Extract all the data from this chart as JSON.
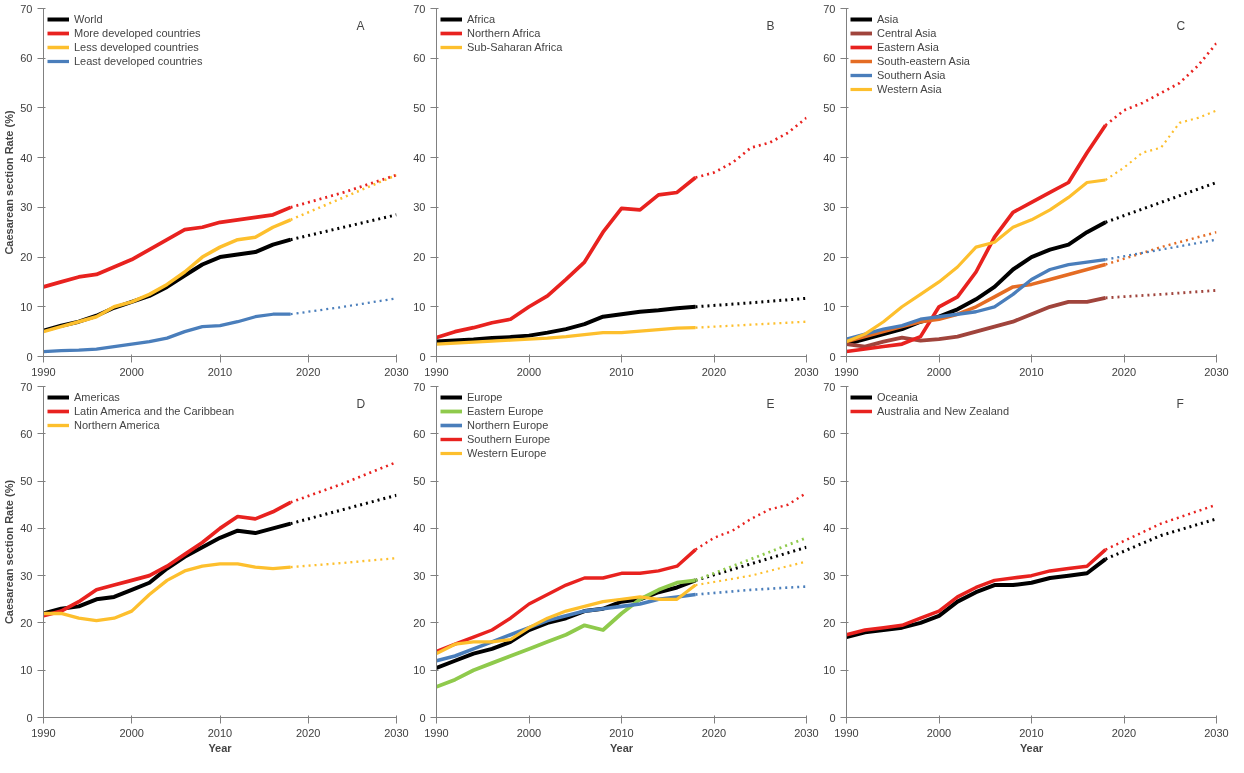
{
  "chart_data": [
    {
      "type": "line",
      "ylabel": "Caesarean section Rate (%)",
      "annotations": [
        "A"
      ],
      "xlim": [
        1990,
        2030
      ],
      "xticks": [
        1990,
        2000,
        2010,
        2020,
        2030
      ],
      "ylim": [
        0,
        70
      ],
      "yticks": [
        0,
        10,
        20,
        30,
        40,
        50,
        60,
        70
      ],
      "grid": false,
      "legend": "top left",
      "marker": "none",
      "line_style": "solid",
      "series": [
        {
          "name": "World",
          "color": "#000000",
          "x": [
            1990,
            1992,
            1994,
            1996,
            1998,
            2000,
            2002,
            2004,
            2006,
            2008,
            2010,
            2012,
            2014,
            2016,
            2018
          ],
          "values": [
            5.2,
            6.2,
            7,
            8.2,
            9.8,
            11,
            12.2,
            14,
            16.3,
            18.5,
            20,
            20.5,
            21,
            22.5,
            23.5
          ]
        },
        {
          "name": "More developed countries",
          "color": "#e8221f",
          "x": [
            1990,
            1992,
            1994,
            1996,
            1998,
            2000,
            2002,
            2004,
            2006,
            2008,
            2010,
            2012,
            2014,
            2016,
            2018
          ],
          "values": [
            14,
            15,
            16,
            16.5,
            18,
            19.5,
            21.5,
            23.5,
            25.5,
            26,
            27,
            27.5,
            28,
            28.5,
            30
          ]
        },
        {
          "name": "Less developed countries",
          "color": "#fdbf2d",
          "x": [
            1990,
            1992,
            1994,
            1996,
            1998,
            2000,
            2002,
            2004,
            2006,
            2008,
            2010,
            2012,
            2014,
            2016,
            2018
          ],
          "values": [
            5,
            6,
            7,
            8,
            10,
            11,
            12.5,
            14.5,
            17,
            20,
            22,
            23.5,
            24,
            26,
            27.5
          ]
        },
        {
          "name": "Least developed countries",
          "color": "#4a7ebb",
          "x": [
            1990,
            1992,
            1994,
            1996,
            1998,
            2000,
            2002,
            2004,
            2006,
            2008,
            2010,
            2012,
            2014,
            2016,
            2018
          ],
          "values": [
            1,
            1.2,
            1.3,
            1.5,
            2,
            2.5,
            3,
            3.7,
            5,
            6,
            6.2,
            7,
            8,
            8.5,
            8.5
          ]
        },
        {
          "color": "#000000",
          "line_style": "dotted",
          "x": [
            2018,
            2024,
            2030
          ],
          "values": [
            23.5,
            26,
            28.5
          ]
        },
        {
          "color": "#e8221f",
          "line_style": "dotted",
          "x": [
            2018,
            2024,
            2030
          ],
          "values": [
            30,
            33,
            36.5
          ]
        },
        {
          "color": "#fdbf2d",
          "line_style": "dotted",
          "x": [
            2018,
            2024,
            2030
          ],
          "values": [
            27.5,
            32,
            36.5
          ]
        },
        {
          "color": "#4a7ebb",
          "line_style": "dotted",
          "x": [
            2018,
            2024,
            2030
          ],
          "values": [
            8.5,
            10,
            11.7
          ]
        }
      ]
    },
    {
      "type": "line",
      "annotations": [
        "B"
      ],
      "xlim": [
        1990,
        2030
      ],
      "xticks": [
        1990,
        2000,
        2010,
        2020,
        2030
      ],
      "ylim": [
        0,
        70
      ],
      "yticks": [
        0,
        10,
        20,
        30,
        40,
        50,
        60,
        70
      ],
      "grid": false,
      "legend": "top left",
      "marker": "none",
      "line_style": "solid",
      "series": [
        {
          "name": "Africa",
          "color": "#000000",
          "x": [
            1990,
            1992,
            1994,
            1996,
            1998,
            2000,
            2002,
            2004,
            2006,
            2008,
            2010,
            2012,
            2014,
            2016,
            2018
          ],
          "values": [
            3,
            3.2,
            3.4,
            3.7,
            3.9,
            4.2,
            4.8,
            5.5,
            6.5,
            8,
            8.5,
            9,
            9.3,
            9.7,
            10
          ]
        },
        {
          "name": "Northern Africa",
          "color": "#e8221f",
          "x": [
            1990,
            1992,
            1994,
            1996,
            1998,
            2000,
            2002,
            2004,
            2006,
            2008,
            2010,
            2012,
            2014,
            2016,
            2018
          ],
          "values": [
            3.8,
            5,
            5.8,
            6.8,
            7.5,
            10,
            12.2,
            15.5,
            19,
            25,
            29.8,
            29.5,
            32.5,
            33,
            36
          ]
        },
        {
          "name": "Sub-Saharan Africa",
          "color": "#fdbf2d",
          "x": [
            1990,
            1992,
            1994,
            1996,
            1998,
            2000,
            2002,
            2004,
            2006,
            2008,
            2010,
            2012,
            2014,
            2016,
            2018
          ],
          "values": [
            2.5,
            2.7,
            2.9,
            3.1,
            3.3,
            3.5,
            3.7,
            4,
            4.4,
            4.8,
            4.8,
            5.1,
            5.4,
            5.7,
            5.8
          ]
        },
        {
          "color": "#000000",
          "line_style": "dotted",
          "x": [
            2018,
            2024,
            2030
          ],
          "values": [
            10,
            10.8,
            11.7
          ]
        },
        {
          "color": "#e8221f",
          "line_style": "dotted",
          "x": [
            2018,
            2020,
            2022,
            2024,
            2026,
            2028,
            2030
          ],
          "values": [
            36,
            37,
            39,
            42,
            43,
            45,
            48
          ]
        },
        {
          "color": "#fdbf2d",
          "line_style": "dotted",
          "x": [
            2018,
            2024,
            2030
          ],
          "values": [
            5.8,
            6.4,
            7
          ]
        }
      ]
    },
    {
      "type": "line",
      "annotations": [
        "C"
      ],
      "xlim": [
        1990,
        2030
      ],
      "xticks": [
        1990,
        2000,
        2010,
        2020,
        2030
      ],
      "ylim": [
        0,
        70
      ],
      "yticks": [
        0,
        10,
        20,
        30,
        40,
        50,
        60,
        70
      ],
      "grid": false,
      "legend": "top left",
      "marker": "none",
      "line_style": "solid",
      "series": [
        {
          "name": "Asia",
          "color": "#000000",
          "x": [
            1990,
            1992,
            1994,
            1996,
            1998,
            2000,
            2002,
            2004,
            2006,
            2008,
            2010,
            2012,
            2014,
            2016,
            2018
          ],
          "values": [
            2.5,
            3.5,
            4.5,
            5.5,
            7,
            8,
            9.5,
            11.5,
            14,
            17.5,
            20,
            21.5,
            22.5,
            25,
            27
          ]
        },
        {
          "name": "Central Asia",
          "color": "#a0443c",
          "x": [
            1990,
            1992,
            1994,
            1996,
            1998,
            2000,
            2002,
            2004,
            2006,
            2008,
            2010,
            2012,
            2014,
            2016,
            2018
          ],
          "values": [
            2.5,
            2,
            3,
            3.8,
            3.2,
            3.5,
            4,
            5,
            6,
            7,
            8.5,
            10,
            11,
            11,
            11.8
          ]
        },
        {
          "name": "Eastern Asia",
          "color": "#e8221f",
          "x": [
            1990,
            1992,
            1994,
            1996,
            1998,
            2000,
            2002,
            2004,
            2006,
            2008,
            2010,
            2012,
            2014,
            2016,
            2018
          ],
          "values": [
            1,
            1.5,
            2,
            2.5,
            4,
            10,
            12,
            17,
            24,
            29,
            31,
            33,
            35,
            41,
            46.5
          ]
        },
        {
          "name": "South-eastern Asia",
          "color": "#e46c24",
          "x": [
            1990,
            1992,
            1994,
            1996,
            1998,
            2000,
            2002,
            2004,
            2006,
            2008,
            2010,
            2012,
            2014,
            2016,
            2018
          ],
          "values": [
            3,
            4,
            5,
            6,
            7,
            7.5,
            8.5,
            10,
            12,
            14,
            14.5,
            15.5,
            16.5,
            17.5,
            18.5
          ]
        },
        {
          "name": "Southern Asia",
          "color": "#4a7ebb",
          "x": [
            1990,
            1992,
            1994,
            1996,
            1998,
            2000,
            2002,
            2004,
            2006,
            2008,
            2010,
            2012,
            2014,
            2016,
            2018
          ],
          "values": [
            3.5,
            4.5,
            5.5,
            6.2,
            7.5,
            8,
            8.5,
            9,
            10,
            12.5,
            15.5,
            17.5,
            18.5,
            19,
            19.5
          ]
        },
        {
          "name": "Western Asia",
          "color": "#fdbf2d",
          "x": [
            1990,
            1992,
            1994,
            1996,
            1998,
            2000,
            2002,
            2004,
            2006,
            2008,
            2010,
            2012,
            2014,
            2016,
            2018
          ],
          "values": [
            3,
            4.5,
            7,
            10,
            12.5,
            15,
            18,
            22,
            23,
            26,
            27.5,
            29.5,
            32,
            35,
            35.5
          ]
        },
        {
          "color": "#000000",
          "line_style": "dotted",
          "x": [
            2018,
            2024,
            2030
          ],
          "values": [
            27,
            31,
            35
          ]
        },
        {
          "color": "#a0443c",
          "line_style": "dotted",
          "x": [
            2018,
            2024,
            2030
          ],
          "values": [
            11.8,
            12.5,
            13.3
          ]
        },
        {
          "color": "#e8221f",
          "line_style": "dotted",
          "x": [
            2018,
            2020,
            2022,
            2024,
            2026,
            2028,
            2030
          ],
          "values": [
            46.5,
            49.5,
            51,
            53,
            55,
            58.5,
            63
          ]
        },
        {
          "color": "#e46c24",
          "line_style": "dotted",
          "x": [
            2018,
            2024,
            2030
          ],
          "values": [
            18.5,
            22,
            25
          ]
        },
        {
          "color": "#4a7ebb",
          "line_style": "dotted",
          "x": [
            2018,
            2024,
            2030
          ],
          "values": [
            19.5,
            21.5,
            23.5
          ]
        },
        {
          "color": "#fdbf2d",
          "line_style": "dotted",
          "x": [
            2018,
            2020,
            2022,
            2024,
            2026,
            2028,
            2030
          ],
          "values": [
            35.5,
            38,
            41,
            42,
            47,
            48,
            49.5
          ]
        }
      ]
    },
    {
      "type": "line",
      "xlabel": "Year",
      "ylabel": "Caesarean section Rate (%)",
      "annotations": [
        "D"
      ],
      "xlim": [
        1990,
        2030
      ],
      "xticks": [
        1990,
        2000,
        2010,
        2020,
        2030
      ],
      "ylim": [
        0,
        70
      ],
      "yticks": [
        0,
        10,
        20,
        30,
        40,
        50,
        60,
        70
      ],
      "grid": false,
      "legend": "top left",
      "marker": "none",
      "line_style": "solid",
      "series": [
        {
          "name": "Americas",
          "color": "#000000",
          "x": [
            1990,
            1992,
            1994,
            1996,
            1998,
            2000,
            2002,
            2004,
            2006,
            2008,
            2010,
            2012,
            2014,
            2016,
            2018
          ],
          "values": [
            22,
            23,
            23.5,
            25,
            25.5,
            27,
            28.5,
            31.5,
            34,
            36,
            38,
            39.5,
            39,
            40,
            41
          ]
        },
        {
          "name": "Latin America and the Caribbean",
          "color": "#e8221f",
          "x": [
            1990,
            1992,
            1994,
            1996,
            1998,
            2000,
            2002,
            2004,
            2006,
            2008,
            2010,
            2012,
            2014,
            2016,
            2018
          ],
          "values": [
            21.5,
            22.5,
            24.5,
            27,
            28,
            29,
            30,
            32,
            34.5,
            37,
            40,
            42.5,
            42,
            43.5,
            45.5
          ]
        },
        {
          "name": "Northern America",
          "color": "#fdbf2d",
          "x": [
            1990,
            1992,
            1994,
            1996,
            1998,
            2000,
            2002,
            2004,
            2006,
            2008,
            2010,
            2012,
            2014,
            2016,
            2018
          ],
          "values": [
            22,
            22,
            21,
            20.5,
            21,
            22.5,
            26,
            29,
            31,
            32,
            32.5,
            32.5,
            31.8,
            31.5,
            31.8
          ]
        },
        {
          "color": "#000000",
          "line_style": "dotted",
          "x": [
            2018,
            2024,
            2030
          ],
          "values": [
            41,
            44,
            47
          ]
        },
        {
          "color": "#e8221f",
          "line_style": "dotted",
          "x": [
            2018,
            2024,
            2030
          ],
          "values": [
            45.5,
            49.5,
            54
          ]
        },
        {
          "color": "#fdbf2d",
          "line_style": "dotted",
          "x": [
            2018,
            2024,
            2030
          ],
          "values": [
            31.8,
            32.7,
            33.7
          ]
        }
      ]
    },
    {
      "type": "line",
      "xlabel": "Year",
      "annotations": [
        "E"
      ],
      "xlim": [
        1990,
        2030
      ],
      "xticks": [
        1990,
        2000,
        2010,
        2020,
        2030
      ],
      "ylim": [
        0,
        70
      ],
      "yticks": [
        0,
        10,
        20,
        30,
        40,
        50,
        60,
        70
      ],
      "grid": false,
      "legend": "top left",
      "marker": "none",
      "line_style": "solid",
      "series": [
        {
          "name": "Europe",
          "color": "#000000",
          "x": [
            1990,
            1992,
            1994,
            1996,
            1998,
            2000,
            2002,
            2004,
            2006,
            2008,
            2010,
            2012,
            2014,
            2016,
            2018
          ],
          "values": [
            10.5,
            12,
            13.5,
            14.5,
            16,
            18.5,
            20,
            21,
            22.5,
            23,
            24.5,
            25,
            26.5,
            27.5,
            29
          ]
        },
        {
          "name": "Eastern Europe",
          "color": "#8fca4c",
          "x": [
            1990,
            1992,
            1994,
            1996,
            1998,
            2000,
            2002,
            2004,
            2006,
            2008,
            2010,
            2012,
            2014,
            2016,
            2018
          ],
          "values": [
            6.5,
            8,
            10,
            11.5,
            13,
            14.5,
            16,
            17.5,
            19.5,
            18.5,
            22,
            25,
            27,
            28.5,
            29
          ]
        },
        {
          "name": "Northern Europe",
          "color": "#4a7ebb",
          "x": [
            1990,
            1992,
            1994,
            1996,
            1998,
            2000,
            2002,
            2004,
            2006,
            2008,
            2010,
            2012,
            2014,
            2016,
            2018
          ],
          "values": [
            12,
            13,
            14.5,
            16,
            17.5,
            19,
            20.5,
            21.5,
            22.5,
            23,
            23.5,
            24,
            25,
            25.5,
            26
          ]
        },
        {
          "name": "Southern Europe",
          "color": "#e8221f",
          "x": [
            1990,
            1992,
            1994,
            1996,
            1998,
            2000,
            2002,
            2004,
            2006,
            2008,
            2010,
            2012,
            2014,
            2016,
            2018
          ],
          "values": [
            14,
            15.5,
            17,
            18.5,
            21,
            24,
            26,
            28,
            29.5,
            29.5,
            30.5,
            30.5,
            31,
            32,
            35.5
          ]
        },
        {
          "name": "Western Europe",
          "color": "#fdbf2d",
          "x": [
            1990,
            1992,
            1994,
            1996,
            1998,
            2000,
            2002,
            2004,
            2006,
            2008,
            2010,
            2012,
            2014,
            2016,
            2018
          ],
          "values": [
            13.5,
            15.5,
            16,
            16,
            16.5,
            19,
            21,
            22.5,
            23.5,
            24.5,
            25,
            25.5,
            25,
            25,
            28
          ]
        },
        {
          "color": "#000000",
          "line_style": "dotted",
          "x": [
            2018,
            2024,
            2030
          ],
          "values": [
            29,
            32.5,
            36
          ]
        },
        {
          "color": "#8fca4c",
          "line_style": "dotted",
          "x": [
            2018,
            2024,
            2030
          ],
          "values": [
            29,
            33.5,
            38
          ]
        },
        {
          "color": "#4a7ebb",
          "line_style": "dotted",
          "x": [
            2018,
            2024,
            2030
          ],
          "values": [
            26,
            27,
            27.7
          ]
        },
        {
          "color": "#e8221f",
          "line_style": "dotted",
          "x": [
            2018,
            2020,
            2022,
            2024,
            2026,
            2028,
            2030
          ],
          "values": [
            35.5,
            38,
            39.5,
            42,
            44,
            45,
            47.5
          ]
        },
        {
          "color": "#fdbf2d",
          "line_style": "dotted",
          "x": [
            2018,
            2024,
            2030
          ],
          "values": [
            28,
            30,
            33
          ]
        }
      ]
    },
    {
      "type": "line",
      "xlabel": "Year",
      "annotations": [
        "F"
      ],
      "xlim": [
        1990,
        2030
      ],
      "xticks": [
        1990,
        2000,
        2010,
        2020,
        2030
      ],
      "ylim": [
        0,
        70
      ],
      "yticks": [
        0,
        10,
        20,
        30,
        40,
        50,
        60,
        70
      ],
      "grid": false,
      "legend": "top left",
      "marker": "none",
      "line_style": "solid",
      "series": [
        {
          "name": "Oceania",
          "color": "#000000",
          "x": [
            1990,
            1992,
            1994,
            1996,
            1998,
            2000,
            2002,
            2004,
            2006,
            2008,
            2010,
            2012,
            2014,
            2016,
            2018
          ],
          "values": [
            17,
            18,
            18.5,
            19,
            20,
            21.5,
            24.5,
            26.5,
            28,
            28,
            28.5,
            29.5,
            30,
            30.5,
            33.5
          ]
        },
        {
          "name": "Australia and New Zealand",
          "color": "#e8221f",
          "x": [
            1990,
            1992,
            1994,
            1996,
            1998,
            2000,
            2002,
            2004,
            2006,
            2008,
            2010,
            2012,
            2014,
            2016,
            2018
          ],
          "values": [
            17.5,
            18.5,
            19,
            19.5,
            21,
            22.5,
            25.5,
            27.5,
            29,
            29.5,
            30,
            31,
            31.5,
            32,
            35.5
          ]
        },
        {
          "color": "#000000",
          "line_style": "dotted",
          "x": [
            2018,
            2024,
            2030
          ],
          "values": [
            33.5,
            38.5,
            42
          ]
        },
        {
          "color": "#e8221f",
          "line_style": "dotted",
          "x": [
            2018,
            2024,
            2030
          ],
          "values": [
            35.5,
            41,
            45
          ]
        }
      ]
    }
  ]
}
